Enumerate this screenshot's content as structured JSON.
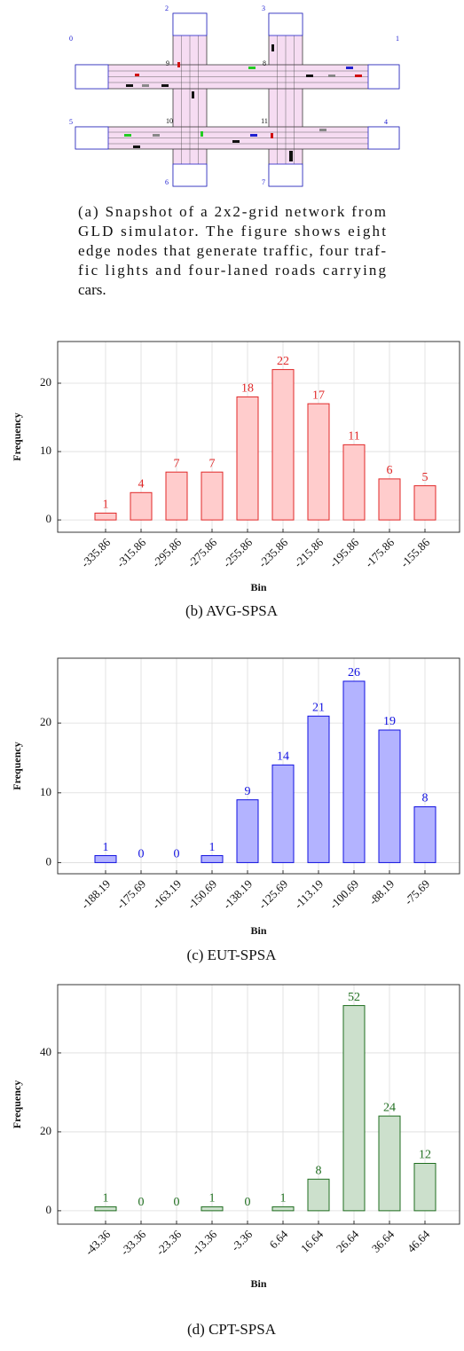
{
  "figure_a": {
    "nodes": [
      "0",
      "1",
      "2",
      "3",
      "4",
      "5",
      "6",
      "7",
      "8",
      "9",
      "10",
      "11"
    ],
    "caption": [
      "(a) Snapshot of a 2x2-grid network from",
      "GLD simulator. The figure shows eight",
      "edge nodes that generate traffic, four traf-",
      "fic lights and four-laned roads carrying",
      "cars."
    ]
  },
  "chart_data": [
    {
      "type": "bar",
      "caption": "(b) AVG-SPSA",
      "xlabel": "Bin",
      "ylabel": "Frequency",
      "categories": [
        "-335.86",
        "-315.86",
        "-295.86",
        "-275.86",
        "-255.86",
        "-235.86",
        "-215.86",
        "-195.86",
        "-175.86",
        "-155.86"
      ],
      "values": [
        1,
        4,
        7,
        7,
        18,
        22,
        17,
        11,
        6,
        5
      ],
      "color": "#ffcccc",
      "edge_color": "#e02828",
      "ylim": [
        -1.8,
        26.1
      ],
      "yticks": [
        0,
        10,
        20
      ],
      "grid": true
    },
    {
      "type": "bar",
      "caption": "(c) EUT-SPSA",
      "xlabel": "Bin",
      "ylabel": "Frequency",
      "categories": [
        "-188.19",
        "-175.69",
        "-163.19",
        "-150.69",
        "-138.19",
        "-125.69",
        "-113.19",
        "-100.69",
        "-88.19",
        "-75.69"
      ],
      "values": [
        1,
        0,
        0,
        1,
        9,
        14,
        21,
        26,
        19,
        8
      ],
      "color": "#b3b3ff",
      "edge_color": "#1010e0",
      "ylim": [
        -1.6,
        29.3
      ],
      "yticks": [
        0,
        10,
        20
      ],
      "grid": true
    },
    {
      "type": "bar",
      "caption": "(d) CPT-SPSA",
      "xlabel": "Bin",
      "ylabel": "Frequency",
      "categories": [
        "-43.36",
        "-33.36",
        "-23.36",
        "-13.36",
        "-3.36",
        "6.64",
        "16.64",
        "26.64",
        "36.64",
        "46.64"
      ],
      "values": [
        1,
        0,
        0,
        1,
        0,
        1,
        8,
        52,
        24,
        12
      ],
      "color": "#cce0cc",
      "edge_color": "#1f6e1f",
      "ylim": [
        -3.4,
        57.3
      ],
      "yticks": [
        0,
        20,
        40
      ],
      "grid": true
    }
  ]
}
